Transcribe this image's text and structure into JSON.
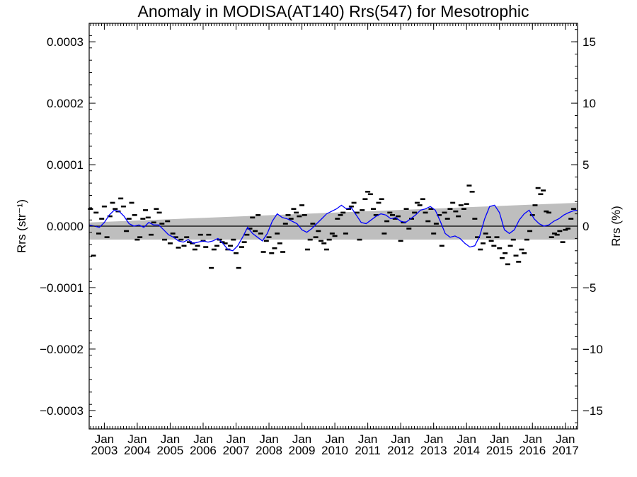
{
  "chart_data": {
    "type": "scatter",
    "title": "Anomaly in MODISA(AT140) Rrs(547) for Mesotrophic",
    "ylabel_left": "Rrs (str⁻¹)",
    "ylabel_right": "Rrs (%)",
    "ylim": [
      -0.00033,
      0.00033
    ],
    "ylim_right_percent": [
      -16.5,
      16.5
    ],
    "xlim": [
      2002.54,
      2017.37
    ],
    "yticks_left": [
      {
        "value": 0.0003,
        "label": "0.0003"
      },
      {
        "value": 0.0002,
        "label": "0.0002"
      },
      {
        "value": 0.0001,
        "label": "0.0001"
      },
      {
        "value": 0.0,
        "label": "0.0000"
      },
      {
        "value": -0.0001,
        "label": "−0.0001"
      },
      {
        "value": -0.0002,
        "label": "−0.0002"
      },
      {
        "value": -0.0003,
        "label": "−0.0003"
      }
    ],
    "yticks_right": [
      {
        "value": 15,
        "label": "15"
      },
      {
        "value": 10,
        "label": "10"
      },
      {
        "value": 5,
        "label": "5"
      },
      {
        "value": 0,
        "label": "0"
      },
      {
        "value": -5,
        "label": "−5"
      },
      {
        "value": -10,
        "label": "−10"
      },
      {
        "value": -15,
        "label": "−15"
      }
    ],
    "xticks": [
      {
        "value": 2003,
        "month": "Jan",
        "year": "2003"
      },
      {
        "value": 2004,
        "month": "Jan",
        "year": "2004"
      },
      {
        "value": 2005,
        "month": "Jan",
        "year": "2005"
      },
      {
        "value": 2006,
        "month": "Jan",
        "year": "2006"
      },
      {
        "value": 2007,
        "month": "Jan",
        "year": "2007"
      },
      {
        "value": 2008,
        "month": "Jan",
        "year": "2008"
      },
      {
        "value": 2009,
        "month": "Jan",
        "year": "2009"
      },
      {
        "value": 2010,
        "month": "Jan",
        "year": "2010"
      },
      {
        "value": 2011,
        "month": "Jan",
        "year": "2011"
      },
      {
        "value": 2012,
        "month": "Jan",
        "year": "2012"
      },
      {
        "value": 2013,
        "month": "Jan",
        "year": "2013"
      },
      {
        "value": 2014,
        "month": "Jan",
        "year": "2014"
      },
      {
        "value": 2015,
        "month": "Jan",
        "year": "2015"
      },
      {
        "value": 2016,
        "month": "Jan",
        "year": "2016"
      },
      {
        "value": 2017,
        "month": "Jan",
        "year": "2017"
      }
    ],
    "trend_band": {
      "x": [
        2002.54,
        2017.37
      ],
      "upper": [
        6e-06,
        3.8e-05
      ],
      "lower": [
        -2.2e-05,
        -2.2e-05
      ]
    },
    "zero_line": 0,
    "series": [
      {
        "kind": "points",
        "x": [
          2002.58,
          2002.67,
          2002.75,
          2002.83,
          2002.92,
          2003.0,
          2003.08,
          2003.17,
          2003.25,
          2003.33,
          2003.42,
          2003.5,
          2003.58,
          2003.67,
          2003.75,
          2003.83,
          2003.92,
          2004.0,
          2004.08,
          2004.17,
          2004.25,
          2004.33,
          2004.42,
          2004.5,
          2004.58,
          2004.67,
          2004.75,
          2004.83,
          2004.92,
          2005.0,
          2005.08,
          2005.17,
          2005.25,
          2005.33,
          2005.42,
          2005.5,
          2005.58,
          2005.67,
          2005.75,
          2005.83,
          2005.92,
          2006.0,
          2006.08,
          2006.17,
          2006.25,
          2006.33,
          2006.42,
          2006.5,
          2006.58,
          2006.67,
          2006.75,
          2006.83,
          2006.92,
          2007.0,
          2007.08,
          2007.17,
          2007.25,
          2007.33,
          2007.42,
          2007.5,
          2007.58,
          2007.67,
          2007.75,
          2007.83,
          2007.92,
          2008.0,
          2008.08,
          2008.17,
          2008.25,
          2008.33,
          2008.42,
          2008.5,
          2008.58,
          2008.67,
          2008.75,
          2008.83,
          2008.92,
          2009.0,
          2009.08,
          2009.17,
          2009.25,
          2009.33,
          2009.42,
          2009.5,
          2009.58,
          2009.67,
          2009.75,
          2009.83,
          2009.92,
          2010.0,
          2010.08,
          2010.17,
          2010.25,
          2010.33,
          2010.42,
          2010.5,
          2010.58,
          2010.67,
          2010.75,
          2010.83,
          2010.92,
          2011.0,
          2011.08,
          2011.17,
          2011.25,
          2011.33,
          2011.42,
          2011.5,
          2011.58,
          2011.67,
          2011.75,
          2011.83,
          2011.92,
          2012.0,
          2012.08,
          2012.17,
          2012.25,
          2012.33,
          2012.42,
          2012.5,
          2012.58,
          2012.67,
          2012.75,
          2012.83,
          2012.92,
          2013.0,
          2013.08,
          2013.17,
          2013.25,
          2013.33,
          2013.42,
          2013.5,
          2013.58,
          2013.67,
          2013.75,
          2013.83,
          2013.92,
          2014.0,
          2014.08,
          2014.17,
          2014.25,
          2014.33,
          2014.42,
          2014.5,
          2014.58,
          2014.67,
          2014.75,
          2014.83,
          2014.92,
          2015.0,
          2015.08,
          2015.17,
          2015.25,
          2015.33,
          2015.42,
          2015.5,
          2015.58,
          2015.67,
          2015.75,
          2015.83,
          2015.92,
          2016.0,
          2016.08,
          2016.17,
          2016.25,
          2016.33,
          2016.42,
          2016.5,
          2016.58,
          2016.67,
          2016.75,
          2016.83,
          2016.92,
          2017.0,
          2017.08,
          2017.17,
          2017.25
        ],
        "y": [
          2.8e-05,
          -4.8e-05,
          2.2e-05,
          -1.2e-05,
          1.2e-05,
          3.2e-05,
          -1.8e-05,
          1.6e-05,
          3.8e-05,
          2.8e-05,
          2.4e-05,
          4.5e-05,
          3.2e-05,
          -8e-06,
          1.2e-05,
          3.8e-05,
          1.8e-05,
          -2.2e-05,
          -1.8e-05,
          1.2e-05,
          2.6e-05,
          1.4e-05,
          -1.4e-05,
          6e-06,
          2.8e-05,
          2.2e-05,
          4e-06,
          -2.2e-05,
          8e-06,
          -2.8e-05,
          -1.2e-05,
          -1.8e-05,
          -3.5e-05,
          -2.2e-05,
          -3.2e-05,
          -1.8e-05,
          -2.6e-05,
          -2.8e-05,
          -3.8e-05,
          -3.2e-05,
          -1.4e-05,
          -2.4e-05,
          -3.4e-05,
          -1.4e-05,
          -6.8e-05,
          -3.8e-05,
          -3.2e-05,
          -2.2e-05,
          -2.6e-05,
          -2.8e-05,
          -3.8e-05,
          -3.2e-05,
          -2.2e-05,
          -4.4e-05,
          -6.8e-05,
          -3.4e-05,
          -2.6e-05,
          -1.4e-05,
          -4e-06,
          1.4e-05,
          -8e-06,
          1.8e-05,
          -1.2e-05,
          -4.2e-05,
          -2.4e-05,
          -1.8e-05,
          -4.4e-05,
          -3.6e-05,
          -1.2e-05,
          -2.8e-05,
          -4.2e-05,
          4e-06,
          1.8e-05,
          1.2e-05,
          2.8e-05,
          2.2e-05,
          1.6e-05,
          3.4e-05,
          1.8e-05,
          -3.8e-05,
          -2.2e-05,
          4e-06,
          -1.8e-05,
          -8e-06,
          -2.4e-05,
          -2.8e-05,
          -3.8e-05,
          -2.2e-05,
          -1.2e-05,
          -1.6e-05,
          1.2e-05,
          1.8e-05,
          2.2e-05,
          -1.2e-05,
          2.8e-05,
          3.2e-05,
          3.8e-05,
          2.2e-05,
          -2.2e-05,
          2.6e-05,
          4.4e-05,
          5.6e-05,
          5.2e-05,
          2.8e-05,
          1.8e-05,
          3.8e-05,
          4.4e-05,
          -1.2e-05,
          8e-06,
          2.2e-05,
          1.8e-05,
          1.2e-05,
          1.6e-05,
          -2.4e-05,
          6e-06,
          2.8e-05,
          -4e-06,
          1.2e-05,
          2.2e-05,
          3.8e-05,
          3.4e-05,
          4.4e-05,
          2.2e-05,
          8e-06,
          2.8e-05,
          -1.2e-05,
          4e-06,
          1.8e-05,
          -3.2e-05,
          2.2e-05,
          1.2e-05,
          2.8e-05,
          3.8e-05,
          2.4e-05,
          1.6e-05,
          3.4e-05,
          2.8e-05,
          3.6e-05,
          6.6e-05,
          5.6e-05,
          1.2e-05,
          -1.8e-05,
          -3.8e-05,
          -2.8e-05,
          -1.2e-05,
          -1.8e-05,
          -2.4e-05,
          -3.2e-05,
          -1.8e-05,
          -3.6e-05,
          -5.2e-05,
          -4.4e-05,
          -6.2e-05,
          -3.2e-05,
          -2.2e-05,
          -4.8e-05,
          -5.8e-05,
          -3.8e-05,
          -4.4e-05,
          -2.2e-05,
          -8e-06,
          1.8e-05,
          3.4e-05,
          6.2e-05,
          5.2e-05,
          5.8e-05,
          2.4e-05,
          2.2e-05,
          -1.8e-05,
          -1.2e-05,
          -1.4e-05,
          -8e-06,
          -2.6e-05,
          -6e-06,
          -4e-06,
          1.2e-05,
          2.8e-05
        ]
      },
      {
        "kind": "line",
        "color": "#0000ff",
        "x": [
          2002.54,
          2002.7,
          2002.85,
          2003.0,
          2003.15,
          2003.3,
          2003.45,
          2003.6,
          2003.75,
          2003.9,
          2004.05,
          2004.2,
          2004.35,
          2004.5,
          2004.65,
          2004.8,
          2004.95,
          2005.1,
          2005.25,
          2005.4,
          2005.55,
          2005.7,
          2005.85,
          2006.0,
          2006.15,
          2006.3,
          2006.45,
          2006.6,
          2006.75,
          2006.9,
          2007.05,
          2007.2,
          2007.35,
          2007.5,
          2007.65,
          2007.8,
          2007.95,
          2008.1,
          2008.25,
          2008.4,
          2008.55,
          2008.7,
          2008.85,
          2009.0,
          2009.15,
          2009.3,
          2009.45,
          2009.6,
          2009.75,
          2009.9,
          2010.05,
          2010.2,
          2010.35,
          2010.5,
          2010.65,
          2010.8,
          2010.95,
          2011.1,
          2011.25,
          2011.4,
          2011.55,
          2011.7,
          2011.85,
          2012.0,
          2012.15,
          2012.3,
          2012.45,
          2012.6,
          2012.75,
          2012.9,
          2013.05,
          2013.2,
          2013.35,
          2013.5,
          2013.65,
          2013.8,
          2013.95,
          2014.1,
          2014.25,
          2014.4,
          2014.55,
          2014.7,
          2014.85,
          2015.0,
          2015.15,
          2015.3,
          2015.45,
          2015.6,
          2015.75,
          2015.9,
          2016.05,
          2016.2,
          2016.35,
          2016.5,
          2016.65,
          2016.8,
          2016.95,
          2017.1,
          2017.25,
          2017.37
        ],
        "y": [
          2e-06,
          0.0,
          -2e-06,
          6e-06,
          1.8e-05,
          2.6e-05,
          2.4e-05,
          1.6e-05,
          4e-06,
          0.0,
          2e-06,
          -2e-06,
          6e-06,
          2e-06,
          2e-06,
          -6e-06,
          -1.4e-05,
          -1.8e-05,
          -2.4e-05,
          -2.6e-05,
          -2.2e-05,
          -2.8e-05,
          -2.6e-05,
          -2.4e-05,
          -2.6e-05,
          -2.4e-05,
          -2e-05,
          -2.8e-05,
          -3.8e-05,
          -4e-05,
          -3.2e-05,
          -1.8e-05,
          -2e-06,
          -1.2e-05,
          -1.8e-05,
          -2.4e-05,
          -1.2e-05,
          8e-06,
          2e-05,
          1.4e-05,
          1.2e-05,
          8e-06,
          4e-06,
          -6e-06,
          -1e-05,
          -4e-06,
          4e-06,
          1.2e-05,
          2e-05,
          2.4e-05,
          2.8e-05,
          3.4e-05,
          2.8e-05,
          3e-05,
          1.8e-05,
          6e-06,
          4e-06,
          1e-05,
          1.6e-05,
          2e-05,
          1.8e-05,
          1.2e-05,
          1.4e-05,
          8e-06,
          6e-06,
          1.2e-05,
          1.8e-05,
          2.6e-05,
          2.8e-05,
          3.2e-05,
          2.6e-05,
          8e-06,
          -1.2e-05,
          -1.8e-05,
          -1.6e-05,
          -2e-05,
          -2.8e-05,
          -3.4e-05,
          -3.2e-05,
          -1.6e-05,
          1.2e-05,
          3.2e-05,
          3.4e-05,
          2.2e-05,
          -6e-06,
          -1.2e-05,
          -6e-06,
          1e-05,
          2e-05,
          2.6e-05,
          1.2e-05,
          4e-06,
          0.0,
          2e-06,
          8e-06,
          1.2e-05,
          1.8e-05,
          2.2e-05,
          2.5e-05,
          2.6e-05
        ]
      }
    ]
  }
}
